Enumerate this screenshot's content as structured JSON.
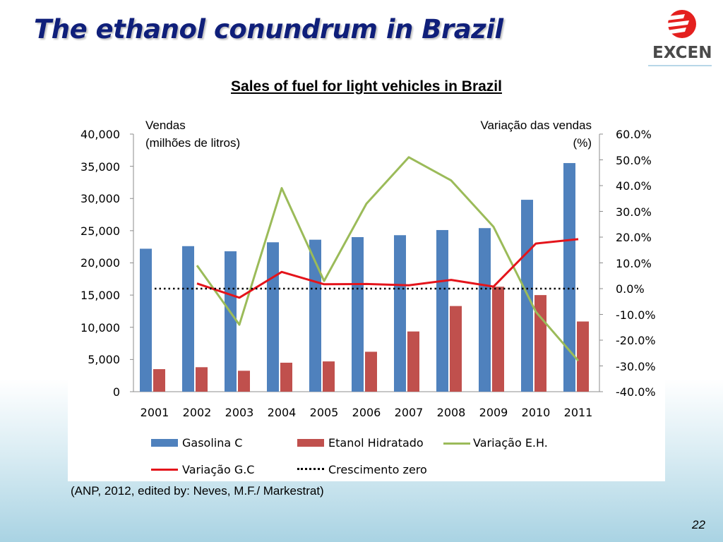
{
  "slide": {
    "title": "The ethanol conundrum in Brazil",
    "logo_text": "EXCEN",
    "source": "(ANP, 2012, edited by: Neves, M.F./ Markestrat)",
    "page_number": "22"
  },
  "colors": {
    "title": "#0f1f7a",
    "gasolina": "#4f81bd",
    "etanol": "#c0504d",
    "var_eh": "#9bbb59",
    "var_gc": "#e4141b",
    "zero": "#000000",
    "logo_red": "#e4201e"
  },
  "chart_data": {
    "type": "bar",
    "title": "Sales of fuel for light vehicles in Brazil",
    "ylabel_left": [
      "Vendas",
      "(milhões de litros)"
    ],
    "ylabel_right": [
      "Variação das vendas",
      "(%)"
    ],
    "categories": [
      "2001",
      "2002",
      "2003",
      "2004",
      "2005",
      "2006",
      "2007",
      "2008",
      "2009",
      "2010",
      "2011"
    ],
    "y_left": {
      "min": 0,
      "max": 40000,
      "ticks": [
        "40,000",
        "35,000",
        "30,000",
        "25,000",
        "20,000",
        "15,000",
        "10,000",
        "5,000",
        "0"
      ]
    },
    "y_right": {
      "min": -40,
      "max": 60,
      "ticks": [
        "60.0%",
        "50.0%",
        "40.0%",
        "30.0%",
        "20.0%",
        "10.0%",
        "0.0%",
        "-10.0%",
        "-20.0%",
        "-30.0%",
        "-40.0%"
      ]
    },
    "bar_series": [
      {
        "name": "Gasolina C",
        "axis": "left",
        "values": [
          22200,
          22600,
          21800,
          23200,
          23600,
          24000,
          24300,
          25100,
          25400,
          29800,
          35500
        ]
      },
      {
        "name": "Etanol Hidratado",
        "axis": "left",
        "values": [
          3500,
          3800,
          3250,
          4500,
          4700,
          6200,
          9350,
          13300,
          16300,
          15000,
          10900
        ]
      }
    ],
    "line_series": [
      {
        "name": "Variação E.H.",
        "axis": "right",
        "start_index": 1,
        "values": [
          9,
          -14,
          39,
          3,
          33,
          51,
          42,
          24,
          -9,
          -28
        ]
      },
      {
        "name": "Variação G.C",
        "axis": "right",
        "start_index": 1,
        "values": [
          2,
          -3.5,
          6.5,
          1.7,
          1.8,
          1.3,
          3.4,
          0.8,
          17.5,
          19.2
        ]
      },
      {
        "name": "Crescimento zero",
        "axis": "right",
        "start_index": 0,
        "dashed": true,
        "values": [
          0,
          0,
          0,
          0,
          0,
          0,
          0,
          0,
          0,
          0,
          0
        ]
      }
    ],
    "legend": [
      "Gasolina C",
      "Etanol Hidratado",
      "Variação E.H.",
      "Variação G.C",
      "Crescimento zero"
    ]
  }
}
